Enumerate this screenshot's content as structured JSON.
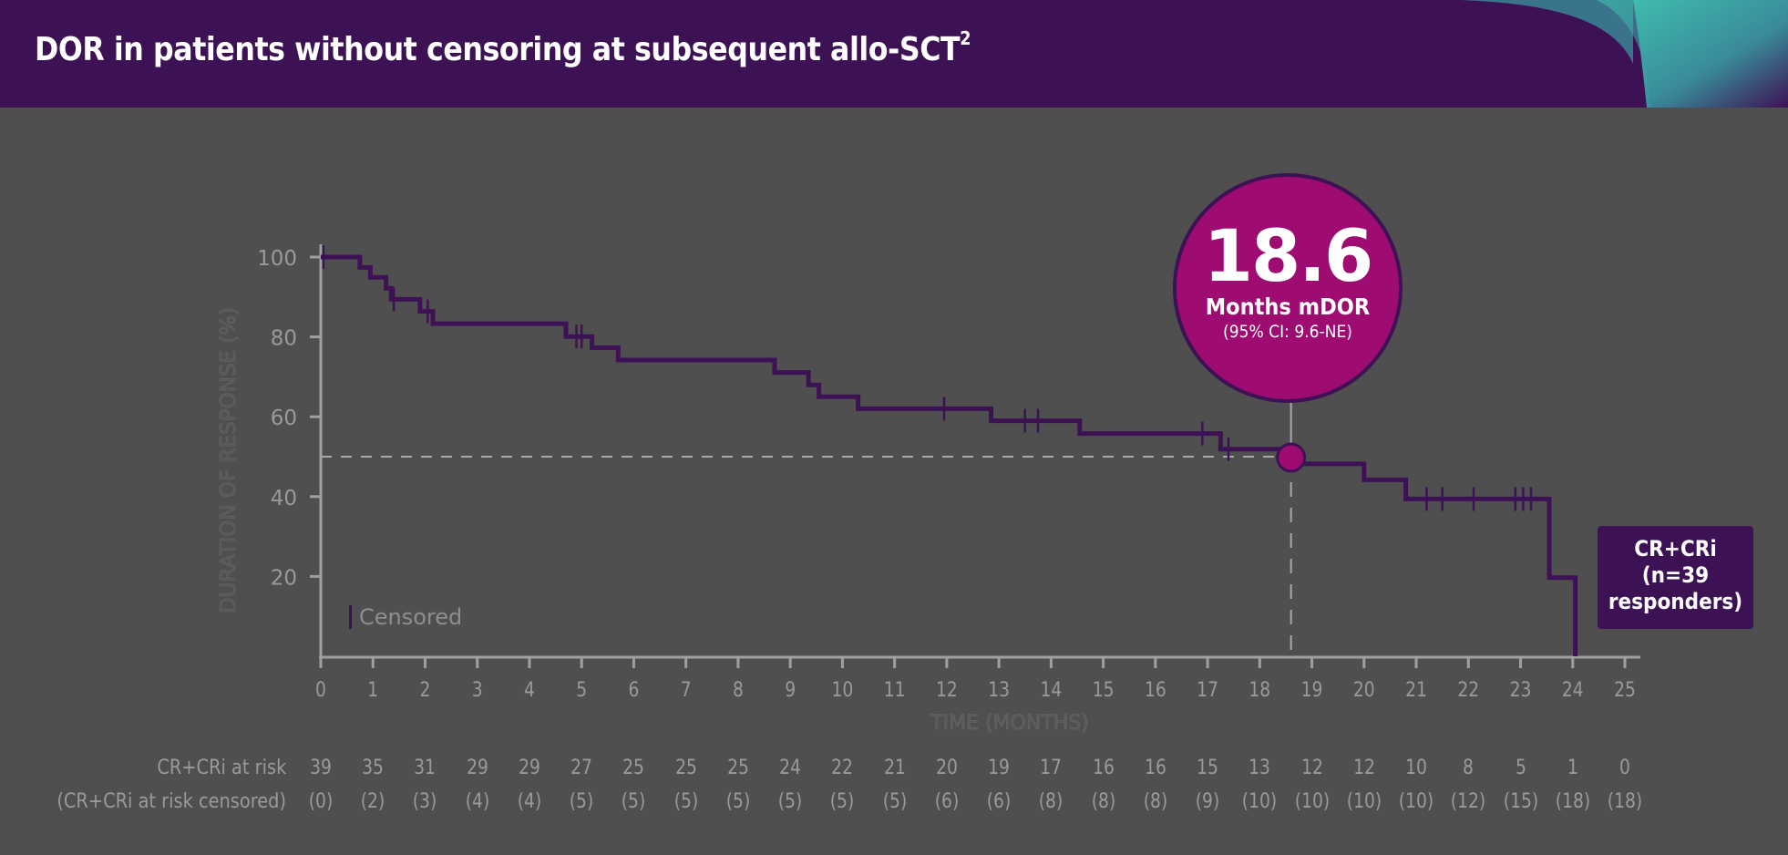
{
  "header": {
    "title": "DOR in patients without censoring at subsequent allo-SCT",
    "title_superscript": "2"
  },
  "colors": {
    "header_bg": "#3d1254",
    "background": "#4f4f4f",
    "curve": "#3d1254",
    "median_marker": "#9e0c72",
    "accent_teal": "#3fc1b0",
    "axis": "#a0a0a0"
  },
  "callout": {
    "value": "18.6",
    "label": "Months mDOR",
    "ci": "(95% CI: 9.6-NE)"
  },
  "group_box": {
    "line1": "CR+CRi",
    "line2": "(n=39",
    "line3": "responders)"
  },
  "legend": {
    "censored_label": "Censored"
  },
  "chart_data": {
    "type": "line",
    "subtype": "kaplan-meier step",
    "title": "DOR in patients without censoring at subsequent allo-SCT",
    "xlabel": "TIME (MONTHS)",
    "ylabel": "DURATION OF RESPONSE (%)",
    "xlim": [
      0,
      25
    ],
    "ylim": [
      0,
      100
    ],
    "x_ticks": [
      0,
      1,
      2,
      3,
      4,
      5,
      6,
      7,
      8,
      9,
      10,
      11,
      12,
      13,
      14,
      15,
      16,
      17,
      18,
      19,
      20,
      21,
      22,
      23,
      24,
      25
    ],
    "y_ticks": [
      20,
      40,
      60,
      80,
      100
    ],
    "grid": false,
    "legend_position": "lower-left",
    "series": [
      {
        "name": "CR+CRi (n=39 responders)",
        "steps": [
          [
            0,
            100
          ],
          [
            0.75,
            100
          ],
          [
            0.75,
            97.4
          ],
          [
            0.95,
            97.4
          ],
          [
            0.95,
            94.9
          ],
          [
            1.25,
            94.9
          ],
          [
            1.25,
            92.2
          ],
          [
            1.35,
            92.2
          ],
          [
            1.35,
            89.4
          ],
          [
            1.9,
            89.4
          ],
          [
            1.9,
            86.4
          ],
          [
            2.15,
            86.4
          ],
          [
            2.15,
            83.3
          ],
          [
            4.7,
            83.3
          ],
          [
            4.7,
            80.1
          ],
          [
            5.2,
            80.1
          ],
          [
            5.2,
            77.3
          ],
          [
            5.7,
            77.3
          ],
          [
            5.7,
            74.2
          ],
          [
            8.7,
            74.2
          ],
          [
            8.7,
            71.1
          ],
          [
            9.35,
            71.1
          ],
          [
            9.35,
            68.0
          ],
          [
            9.55,
            68.0
          ],
          [
            9.55,
            65.0
          ],
          [
            10.3,
            65.0
          ],
          [
            10.3,
            62.0
          ],
          [
            12.85,
            62.0
          ],
          [
            12.85,
            59.0
          ],
          [
            14.55,
            59.0
          ],
          [
            14.55,
            55.8
          ],
          [
            17.25,
            55.8
          ],
          [
            17.25,
            51.9
          ],
          [
            18.6,
            51.9
          ],
          [
            18.6,
            48.2
          ],
          [
            20.0,
            48.2
          ],
          [
            20.0,
            44.2
          ],
          [
            20.8,
            44.2
          ],
          [
            20.8,
            39.4
          ],
          [
            23.55,
            39.4
          ],
          [
            23.55,
            19.7
          ],
          [
            24.05,
            19.7
          ],
          [
            24.05,
            0
          ]
        ],
        "censored_x": [
          0.05,
          1.4,
          2.05,
          4.9,
          5.0,
          11.95,
          13.5,
          13.75,
          16.9,
          17.4,
          21.2,
          21.5,
          22.1,
          22.9,
          23.05,
          23.2
        ],
        "censored_y": [
          100,
          89.4,
          86.4,
          80.1,
          80.1,
          62.0,
          59.0,
          59.0,
          55.8,
          51.9,
          39.4,
          39.4,
          39.4,
          39.4,
          39.4,
          39.4
        ]
      }
    ],
    "annotations": [
      {
        "type": "median",
        "x": 18.6,
        "y": 50,
        "label": "18.6 Months mDOR (95% CI: 9.6-NE)"
      },
      {
        "type": "reference_line",
        "y": 50,
        "style": "dashed"
      },
      {
        "type": "reference_line",
        "x": 18.6,
        "style": "dashed"
      }
    ],
    "risk_table": {
      "rows": [
        {
          "label": "CR+CRi at risk",
          "values": [
            "39",
            "35",
            "31",
            "29",
            "29",
            "27",
            "25",
            "25",
            "25",
            "24",
            "22",
            "21",
            "20",
            "19",
            "17",
            "16",
            "16",
            "15",
            "13",
            "12",
            "12",
            "10",
            "8",
            "5",
            "1",
            "0"
          ]
        },
        {
          "label": "(CR+CRi at risk censored)",
          "values": [
            "(0)",
            "(2)",
            "(3)",
            "(4)",
            "(4)",
            "(5)",
            "(5)",
            "(5)",
            "(5)",
            "(5)",
            "(5)",
            "(5)",
            "(6)",
            "(6)",
            "(8)",
            "(8)",
            "(8)",
            "(9)",
            "(10)",
            "(10)",
            "(10)",
            "(10)",
            "(12)",
            "(15)",
            "(18)",
            "(18)"
          ]
        }
      ]
    }
  }
}
